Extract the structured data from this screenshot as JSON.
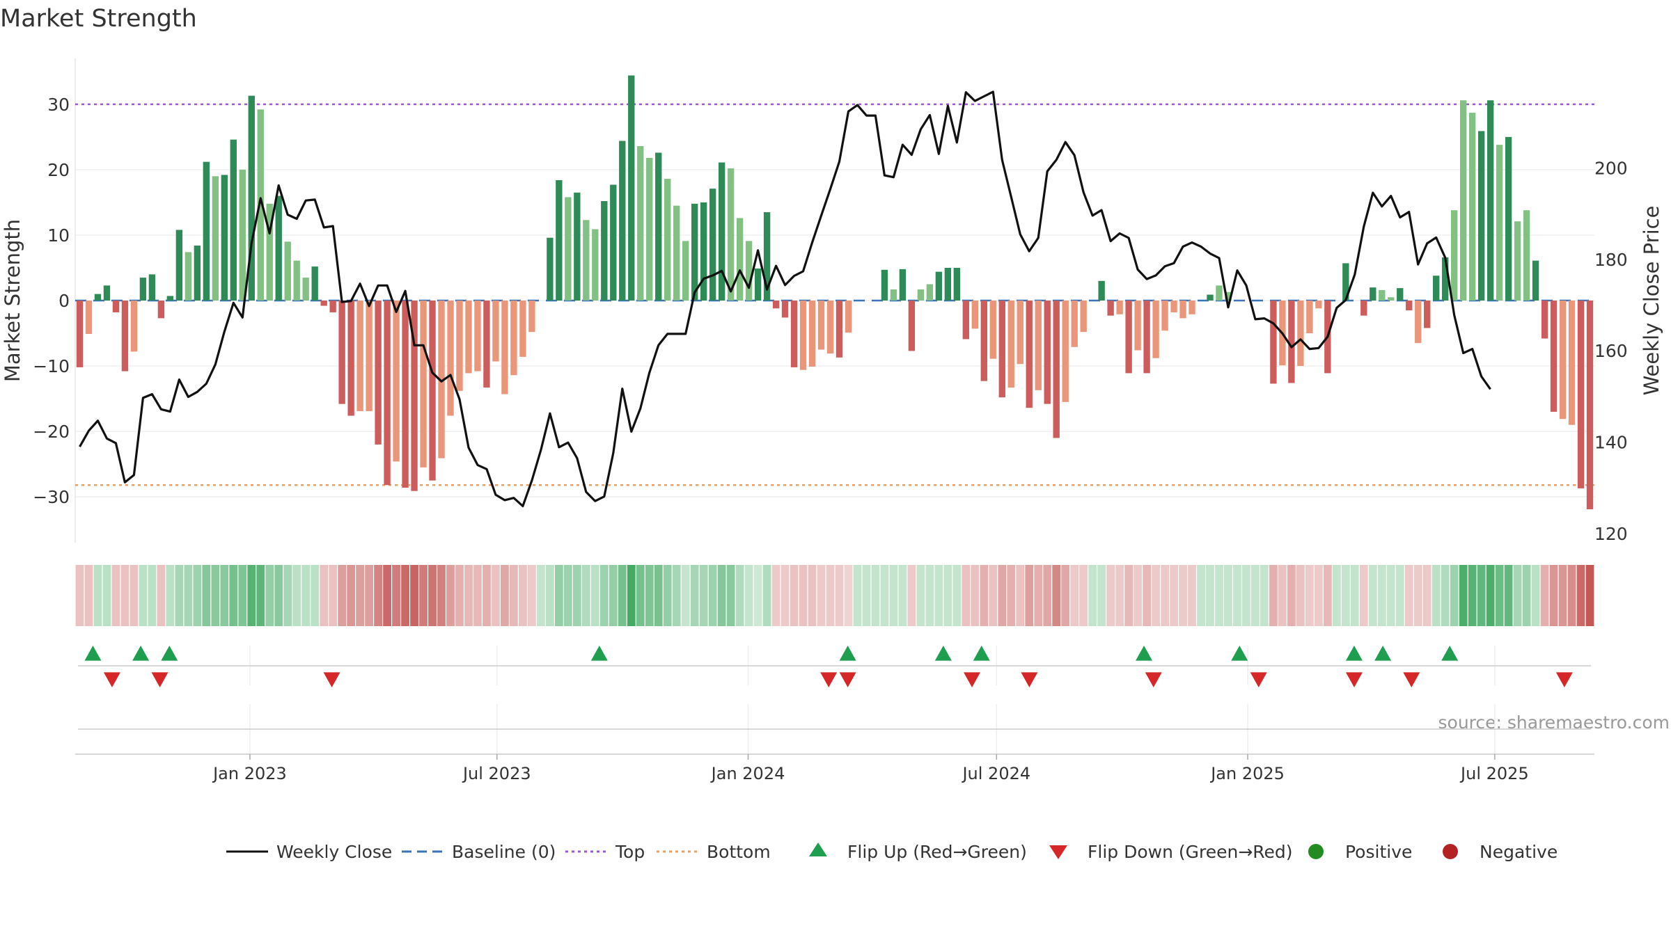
{
  "chart_data": {
    "type": "bar",
    "title": "Market Strength",
    "ylabel": "Market Strength",
    "y2label": "Weekly Close Price",
    "ylim": [
      -37,
      37
    ],
    "y2lim": [
      118,
      224
    ],
    "yticks": [
      -30,
      -20,
      -10,
      0,
      10,
      20,
      30
    ],
    "y2ticks": [
      120,
      140,
      160,
      180,
      200
    ],
    "x_start": "2022-08-26",
    "x_end": "2025-09-12",
    "xticks": [
      {
        "date": "2023-01-01",
        "label": "Jan 2023"
      },
      {
        "date": "2023-07-01",
        "label": "Jul 2023"
      },
      {
        "date": "2024-01-01",
        "label": "Jan 2024"
      },
      {
        "date": "2024-07-01",
        "label": "Jul 2024"
      },
      {
        "date": "2025-01-01",
        "label": "Jan 2025"
      },
      {
        "date": "2025-07-01",
        "label": "Jul 2025"
      }
    ],
    "reference_lines": [
      {
        "name": "Top",
        "value": 30,
        "color": "#9b59d0"
      },
      {
        "name": "Bottom",
        "value": -28.2,
        "color": "#e8a066"
      }
    ],
    "strength": [
      -10.2,
      -5.1,
      1,
      2.3,
      -1.8,
      -10.8,
      -7.8,
      3.5,
      4,
      -2.7,
      0.7,
      10.8,
      7.4,
      8.4,
      21.2,
      19,
      19.2,
      24.6,
      20,
      31.3,
      29.2,
      14.8,
      16,
      9,
      6.1,
      3.5,
      5.2,
      -0.8,
      -1.8,
      -15.8,
      -17.6,
      -16.9,
      -16.9,
      -22,
      -28.2,
      -24.6,
      -28.6,
      -29.1,
      -25.5,
      -27.5,
      -24.1,
      -17.6,
      -13.8,
      -11.1,
      -10.8,
      -13.3,
      -9.3,
      -14.3,
      -11.4,
      -8.6,
      -4.8,
      0,
      9.6,
      18.4,
      15.8,
      16.5,
      12.3,
      10.9,
      15.2,
      17.7,
      24.4,
      34.4,
      23.6,
      21.8,
      22.6,
      18.6,
      14.5,
      9.1,
      14.8,
      15,
      17.1,
      21.1,
      20.2,
      12.6,
      9.1,
      4.9,
      13.5,
      -1.2,
      -2.6,
      -10.2,
      -10.6,
      -10.1,
      -7.5,
      -8.1,
      -8.7,
      -4.9,
      0,
      0,
      0,
      4.7,
      1.7,
      4.8,
      -7.7,
      1.7,
      2.5,
      4.4,
      5,
      5,
      -5.9,
      -4.3,
      -12.3,
      -8.9,
      -14.8,
      -13.3,
      -9.7,
      -16.4,
      -13.7,
      -15.8,
      -21,
      -15.5,
      -7.1,
      -4.8,
      0,
      3,
      -2.3,
      -2.1,
      -11.1,
      -7.6,
      -11.1,
      -8.8,
      -4.6,
      -1.8,
      -2.7,
      -2.1,
      0,
      0.9,
      2.3,
      1.3,
      0,
      0,
      0,
      0,
      -12.7,
      -9.9,
      -12.6,
      -10,
      -5,
      -1.2,
      -11.1,
      0,
      5.7,
      0,
      -2.3,
      2,
      1.6,
      0.5,
      1.9,
      -1.5,
      -6.5,
      -4.2,
      3.8,
      6.6,
      13.8,
      30.6,
      28.7,
      25.9,
      30.6,
      23.8,
      25,
      12.1,
      13.8,
      6.1,
      -5.8,
      -17,
      -18.1,
      -19,
      -28.7,
      -31.9
    ],
    "light": [
      false,
      true,
      false,
      false,
      false,
      false,
      true,
      false,
      false,
      false,
      false,
      false,
      true,
      false,
      false,
      true,
      false,
      false,
      true,
      false,
      true,
      true,
      false,
      true,
      true,
      true,
      false,
      false,
      false,
      false,
      false,
      true,
      true,
      false,
      false,
      true,
      false,
      false,
      true,
      false,
      true,
      true,
      true,
      true,
      true,
      false,
      true,
      true,
      true,
      true,
      true,
      false,
      false,
      false,
      true,
      false,
      true,
      true,
      false,
      false,
      false,
      false,
      true,
      true,
      false,
      true,
      true,
      true,
      false,
      false,
      false,
      false,
      true,
      true,
      true,
      false,
      false,
      false,
      false,
      false,
      true,
      true,
      true,
      true,
      false,
      true,
      false,
      false,
      false,
      false,
      true,
      false,
      false,
      true,
      true,
      false,
      false,
      false,
      false,
      true,
      false,
      true,
      false,
      true,
      true,
      false,
      true,
      false,
      false,
      true,
      true,
      true,
      false,
      false,
      false,
      true,
      false,
      true,
      false,
      true,
      true,
      true,
      true,
      true,
      false,
      false,
      true,
      true,
      false,
      false,
      false,
      false,
      false,
      true,
      false,
      true,
      true,
      true,
      false,
      false,
      false,
      false,
      false,
      false,
      true,
      true,
      false,
      false,
      true,
      false,
      false,
      false,
      true,
      true,
      true,
      false,
      false,
      true,
      false,
      true,
      true,
      false,
      false,
      false,
      true,
      true,
      false,
      false
    ],
    "strip_alpha": [
      0.35,
      0.35,
      0.35,
      0.35,
      0.35,
      0.35,
      0.35,
      0.35,
      0.35,
      0.35,
      0.35,
      0.45,
      0.45,
      0.5,
      0.62,
      0.6,
      0.6,
      0.7,
      0.65,
      0.85,
      0.82,
      0.55,
      0.6,
      0.45,
      0.35,
      0.35,
      0.35,
      0.35,
      0.35,
      0.55,
      0.6,
      0.55,
      0.55,
      0.7,
      0.85,
      0.75,
      0.85,
      0.88,
      0.75,
      0.8,
      0.72,
      0.55,
      0.45,
      0.4,
      0.4,
      0.45,
      0.35,
      0.5,
      0.4,
      0.35,
      0.3,
      0.3,
      0.35,
      0.55,
      0.5,
      0.5,
      0.4,
      0.35,
      0.5,
      0.55,
      0.7,
      0.95,
      0.7,
      0.65,
      0.68,
      0.55,
      0.45,
      0.3,
      0.45,
      0.45,
      0.5,
      0.62,
      0.6,
      0.4,
      0.3,
      0.25,
      0.4,
      0.3,
      0.3,
      0.35,
      0.35,
      0.35,
      0.3,
      0.3,
      0.3,
      0.25,
      0.3,
      0.3,
      0.3,
      0.3,
      0.3,
      0.3,
      0.3,
      0.3,
      0.3,
      0.3,
      0.3,
      0.3,
      0.35,
      0.35,
      0.45,
      0.35,
      0.5,
      0.45,
      0.35,
      0.55,
      0.45,
      0.5,
      0.68,
      0.5,
      0.3,
      0.3,
      0.3,
      0.3,
      0.3,
      0.3,
      0.4,
      0.3,
      0.4,
      0.3,
      0.3,
      0.3,
      0.3,
      0.3,
      0.3,
      0.3,
      0.3,
      0.3,
      0.3,
      0.3,
      0.3,
      0.3,
      0.45,
      0.35,
      0.45,
      0.35,
      0.3,
      0.3,
      0.4,
      0.3,
      0.3,
      0.3,
      0.3,
      0.3,
      0.3,
      0.3,
      0.3,
      0.3,
      0.3,
      0.3,
      0.35,
      0.4,
      0.5,
      0.9,
      0.85,
      0.8,
      0.9,
      0.75,
      0.8,
      0.45,
      0.5,
      0.35,
      0.45,
      0.6,
      0.6,
      0.65,
      0.85,
      0.95
    ],
    "close": [
      139,
      142.5,
      144.7,
      140.8,
      139.8,
      131.2,
      132.8,
      149.7,
      150.5,
      147.2,
      146.7,
      153.7,
      149.9,
      151,
      152.8,
      157,
      164.2,
      170.5,
      167.3,
      183.6,
      193.4,
      185.7,
      196.2,
      189.8,
      188.9,
      192.9,
      193.1,
      187,
      187.3,
      170.7,
      170.9,
      174.7,
      169.8,
      174.3,
      174.3,
      168.5,
      173.1,
      161.2,
      161.2,
      155.2,
      153.3,
      154.7,
      149.4,
      138.8,
      135,
      134.1,
      128.5,
      127.3,
      127.8,
      126,
      131.6,
      138.3,
      146.3,
      138.9,
      139.9,
      136.5,
      129.1,
      127.1,
      128.1,
      137.6,
      151.7,
      142.3,
      147.4,
      155.2,
      161.2,
      163.7,
      163.7,
      163.7,
      172.8,
      175.8,
      176.5,
      177.5,
      173,
      177.6,
      173.8,
      182,
      173.4,
      178.6,
      174.4,
      176.4,
      177.4,
      183.7,
      189.6,
      195.4,
      201.4,
      212.4,
      213.8,
      211.5,
      211.5,
      198.4,
      198,
      205.1,
      202.9,
      208.5,
      211.6,
      203.1,
      213.6,
      205.6,
      216.6,
      214.7,
      215.7,
      216.7,
      201.8,
      193.7,
      185.5,
      181.8,
      184.7,
      199.3,
      201.8,
      205.7,
      202.8,
      194.7,
      189.6,
      190.8,
      184,
      185.7,
      184.7,
      177.8,
      175.7,
      176.5,
      178.5,
      179.2,
      182.8,
      183.7,
      182.8,
      181.3,
      180.3,
      169.5,
      177.6,
      174.3,
      166.9,
      167.1,
      166,
      163.8,
      160.8,
      162.5,
      160.4,
      160.6,
      163.1,
      169.4,
      171.1,
      176.7,
      187.2,
      194.6,
      191.6,
      193.9,
      189.2,
      190.4,
      178.9,
      183.5,
      184.8,
      180.4,
      167.8,
      159.5,
      160.4,
      154.4,
      151.6
    ],
    "flip_up_dates": [
      "2022-09-08",
      "2022-10-13",
      "2022-11-03",
      "2023-09-14",
      "2024-03-14",
      "2024-05-23",
      "2024-06-20",
      "2024-10-17",
      "2024-12-26",
      "2025-03-20",
      "2025-04-10",
      "2025-05-29"
    ],
    "flip_down_dates": [
      "2022-09-22",
      "2022-10-27",
      "2023-03-02",
      "2024-02-29",
      "2024-03-14",
      "2024-06-13",
      "2024-07-25",
      "2024-10-24",
      "2025-01-09",
      "2025-03-20",
      "2025-05-01",
      "2025-08-21"
    ],
    "legend": [
      {
        "label": "Weekly Close",
        "kind": "line-solid",
        "color": "#111111"
      },
      {
        "label": "Baseline (0)",
        "kind": "line-dash",
        "color": "#3a73b8"
      },
      {
        "label": "Top",
        "kind": "line-dot",
        "color": "#9b59d0"
      },
      {
        "label": "Bottom",
        "kind": "line-dot",
        "color": "#e8a066"
      },
      {
        "label": "Flip Up (Red→Green)",
        "kind": "tri-up",
        "color": "#1f9e50"
      },
      {
        "label": "Flip Down (Green→Red)",
        "kind": "tri-down",
        "color": "#d62728"
      },
      {
        "label": "Positive",
        "kind": "dot",
        "color": "#228b22"
      },
      {
        "label": "Negative",
        "kind": "dot",
        "color": "#b22222"
      }
    ],
    "legend_position": "bottom-center",
    "grid": true
  },
  "colors": {
    "pos_dark": "#2e8b57",
    "pos_light": "#82c083",
    "neg_dark": "#cd5c5c",
    "neg_light": "#e9967a",
    "strip_pos": "#3aa55c",
    "strip_neg": "#c0504d"
  },
  "source_text": "source: sharemaestro.com"
}
